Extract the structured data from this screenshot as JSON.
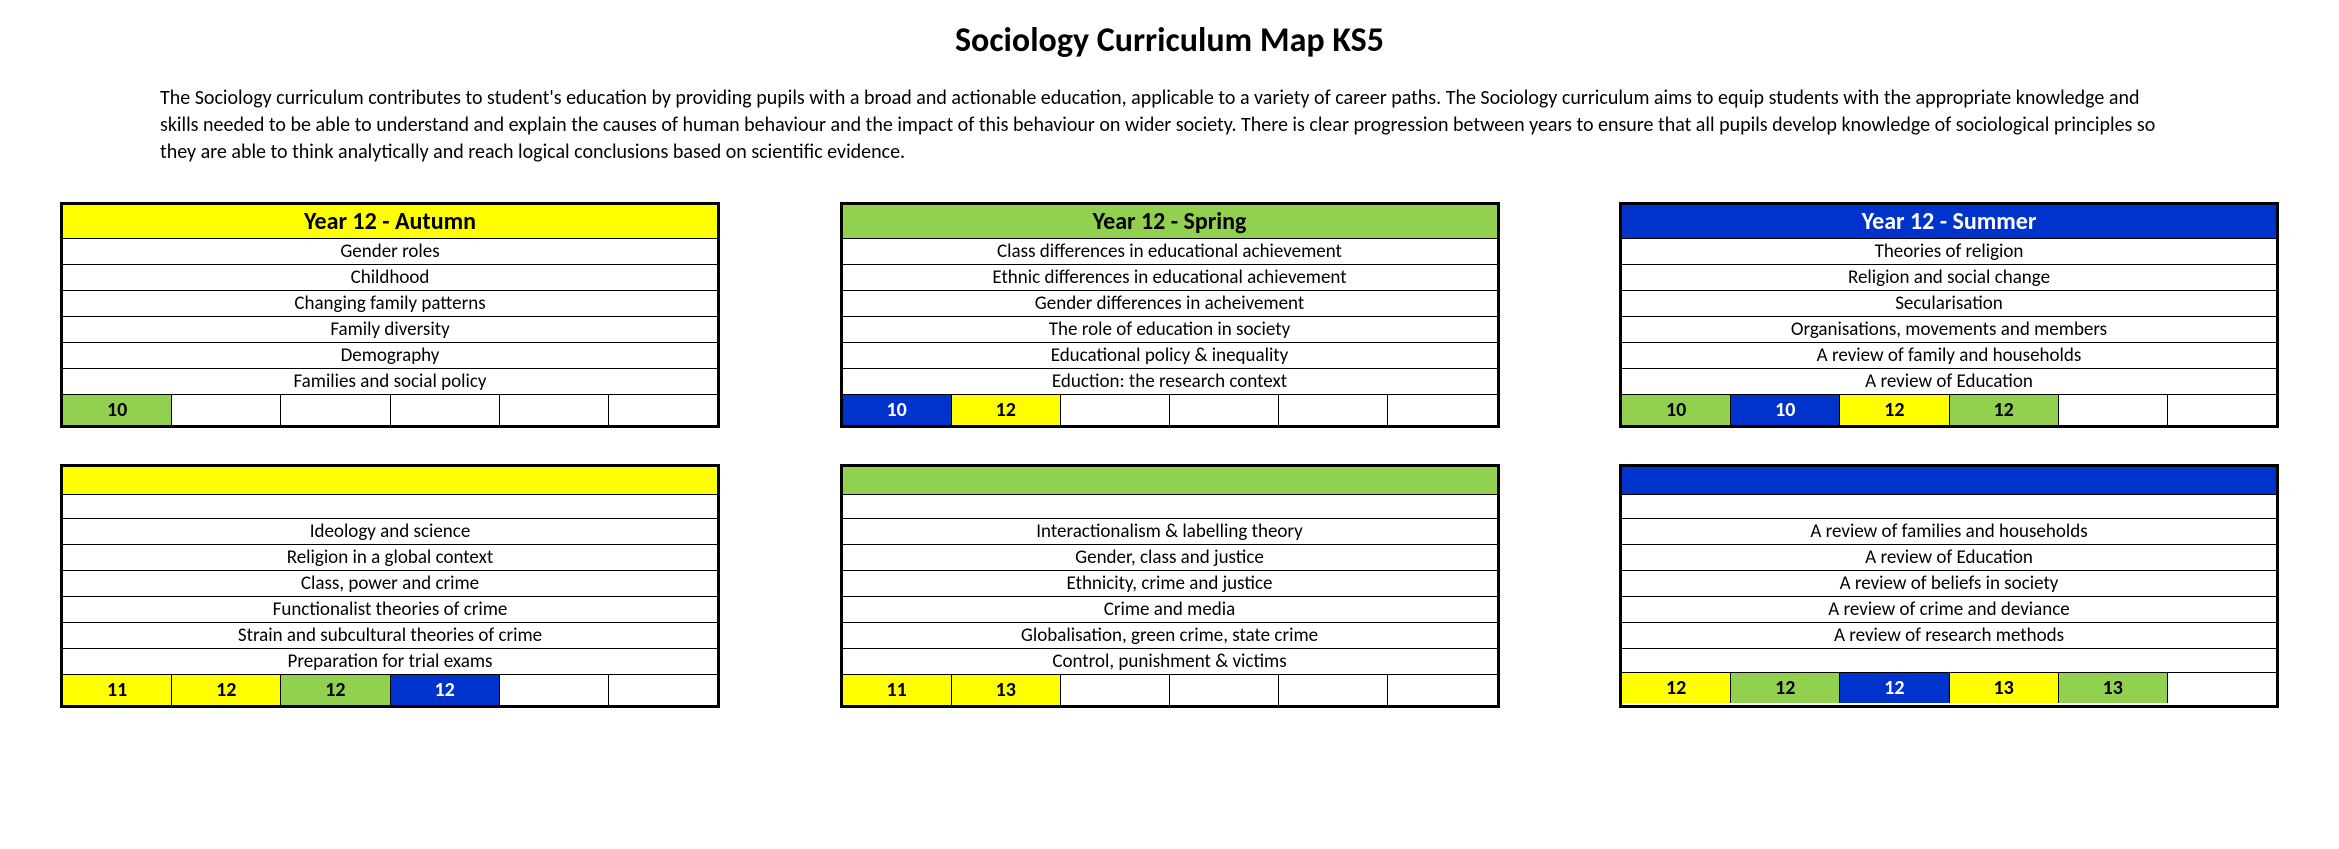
{
  "colors": {
    "yellow": "#ffff00",
    "green": "#92d050",
    "blue": "#0033cc",
    "black": "#000000",
    "white": "#ffffff"
  },
  "title": "Sociology Curriculum Map KS5",
  "intro": "The Sociology curriculum contributes to student's education by providing pupils with a broad and actionable education, applicable to a variety of career paths. The Sociology curriculum aims to equip students with the appropriate knowledge and skills needed to be able to understand and explain the causes of human behaviour and the impact of this behaviour on wider society. There is clear progression between years to ensure that all pupils develop knowledge of sociological principles so they are able to think analytically and reach logical conclusions based on scientific evidence.",
  "cards": [
    {
      "header": "Year 12 - Autumn",
      "header_bg": "#ffff00",
      "header_fg": "#000000",
      "topics": [
        "Gender roles",
        "Childhood",
        "Changing family patterns",
        "Family diversity",
        "Demography",
        "Families and social policy"
      ],
      "footer": [
        {
          "label": "10",
          "bg": "#92d050",
          "fg": "#000000"
        },
        {
          "label": "",
          "bg": "#ffffff",
          "fg": "#000000"
        },
        {
          "label": "",
          "bg": "#ffffff",
          "fg": "#000000"
        },
        {
          "label": "",
          "bg": "#ffffff",
          "fg": "#000000"
        },
        {
          "label": "",
          "bg": "#ffffff",
          "fg": "#000000"
        },
        {
          "label": "",
          "bg": "#ffffff",
          "fg": "#000000"
        }
      ]
    },
    {
      "header": "Year 12 - Spring",
      "header_bg": "#92d050",
      "header_fg": "#000000",
      "topics": [
        "Class differences in educational achievement",
        "Ethnic differences in educational achievement",
        "Gender differences in acheivement",
        "The role of education in society",
        "Educational policy & inequality",
        "Eduction: the research context"
      ],
      "footer": [
        {
          "label": "10",
          "bg": "#0033cc",
          "fg": "#ffffff"
        },
        {
          "label": "12",
          "bg": "#ffff00",
          "fg": "#000000"
        },
        {
          "label": "",
          "bg": "#ffffff",
          "fg": "#000000"
        },
        {
          "label": "",
          "bg": "#ffffff",
          "fg": "#000000"
        },
        {
          "label": "",
          "bg": "#ffffff",
          "fg": "#000000"
        },
        {
          "label": "",
          "bg": "#ffffff",
          "fg": "#000000"
        }
      ]
    },
    {
      "header": "Year 12 - Summer",
      "header_bg": "#0033cc",
      "header_fg": "#ffffff",
      "topics": [
        "Theories of religion",
        "Religion and social change",
        "Secularisation",
        "Organisations, movements and members",
        "A review of family and households",
        "A review of Education"
      ],
      "footer": [
        {
          "label": "10",
          "bg": "#92d050",
          "fg": "#000000"
        },
        {
          "label": "10",
          "bg": "#0033cc",
          "fg": "#ffffff"
        },
        {
          "label": "12",
          "bg": "#ffff00",
          "fg": "#000000"
        },
        {
          "label": "12",
          "bg": "#92d050",
          "fg": "#000000"
        },
        {
          "label": "",
          "bg": "#ffffff",
          "fg": "#000000"
        },
        {
          "label": "",
          "bg": "#ffffff",
          "fg": "#000000"
        }
      ]
    },
    {
      "header": "",
      "header_bg": "#ffff00",
      "header_fg": "#000000",
      "empty_after_header": true,
      "topics": [
        "Ideology and science",
        "Religion in a global context",
        "Class, power and crime",
        "Functionalist theories of crime",
        "Strain and subcultural theories of crime",
        "Preparation for trial exams"
      ],
      "footer": [
        {
          "label": "11",
          "bg": "#ffff00",
          "fg": "#000000"
        },
        {
          "label": "12",
          "bg": "#ffff00",
          "fg": "#000000"
        },
        {
          "label": "12",
          "bg": "#92d050",
          "fg": "#000000"
        },
        {
          "label": "12",
          "bg": "#0033cc",
          "fg": "#ffffff"
        },
        {
          "label": "",
          "bg": "#ffffff",
          "fg": "#000000"
        },
        {
          "label": "",
          "bg": "#ffffff",
          "fg": "#000000"
        }
      ]
    },
    {
      "header": "",
      "header_bg": "#92d050",
      "header_fg": "#000000",
      "empty_after_header": true,
      "topics": [
        "Interactionalism & labelling theory",
        "Gender, class and justice",
        "Ethnicity, crime and justice",
        "Crime and media",
        "Globalisation, green crime, state crime",
        "Control, punishment & victims"
      ],
      "footer": [
        {
          "label": "11",
          "bg": "#ffff00",
          "fg": "#000000"
        },
        {
          "label": "13",
          "bg": "#ffff00",
          "fg": "#000000"
        },
        {
          "label": "",
          "bg": "#ffffff",
          "fg": "#000000"
        },
        {
          "label": "",
          "bg": "#ffffff",
          "fg": "#000000"
        },
        {
          "label": "",
          "bg": "#ffffff",
          "fg": "#000000"
        },
        {
          "label": "",
          "bg": "#ffffff",
          "fg": "#000000"
        }
      ]
    },
    {
      "header": "",
      "header_bg": "#0033cc",
      "header_fg": "#ffffff",
      "empty_after_header": true,
      "topics": [
        "A review of families and households",
        "A review of Education",
        "A review of beliefs in society",
        "A review of crime and deviance",
        "A review of research methods"
      ],
      "blank_topics": 1,
      "footer": [
        {
          "label": "12",
          "bg": "#ffff00",
          "fg": "#000000"
        },
        {
          "label": "12",
          "bg": "#92d050",
          "fg": "#000000"
        },
        {
          "label": "12",
          "bg": "#0033cc",
          "fg": "#ffffff"
        },
        {
          "label": "13",
          "bg": "#ffff00",
          "fg": "#000000"
        },
        {
          "label": "13",
          "bg": "#92d050",
          "fg": "#000000"
        },
        {
          "label": "",
          "bg": "#ffffff",
          "fg": "#000000"
        }
      ]
    }
  ]
}
